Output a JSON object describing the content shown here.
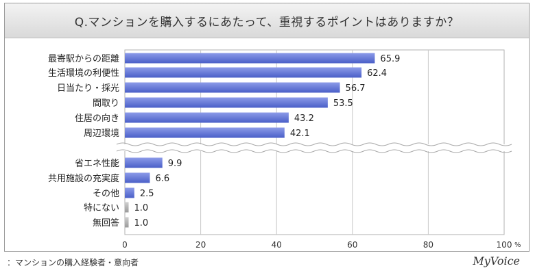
{
  "chart_data": {
    "type": "bar",
    "orientation": "horizontal",
    "title": "Q.マンションを購入するにあたって、重視するポイントはありますか？",
    "categories": [
      "最寄駅からの距離",
      "生活環境の利便性",
      "日当たり・採光",
      "間取り",
      "住居の向き",
      "周辺環境",
      "省エネ性能",
      "共用施設の充実度",
      "その他",
      "特にない",
      "無回答"
    ],
    "values": [
      65.9,
      62.4,
      56.7,
      53.5,
      43.2,
      42.1,
      9.9,
      6.6,
      2.5,
      1.0,
      1.0
    ],
    "value_labels": [
      "65.9",
      "62.4",
      "56.7",
      "53.5",
      "43.2",
      "42.1",
      "9.9",
      "6.6",
      "2.5",
      "1.0",
      "1.0"
    ],
    "gray_categories": [
      "特にない",
      "無回答"
    ],
    "break_after_index": 5,
    "xlim": [
      0,
      100
    ],
    "x_ticks": [
      "0",
      "20",
      "40",
      "60",
      "80",
      "100"
    ],
    "x_unit": "%",
    "grid": true,
    "colors": {
      "bar": "#4a5fc8",
      "bar_light": "#8c9be8",
      "gray": "#9a9a9a",
      "gray_light": "#d0d0d0"
    }
  },
  "footer": {
    "note": "：マンションの購入経験者・意向者",
    "brand": "MyVoice"
  }
}
